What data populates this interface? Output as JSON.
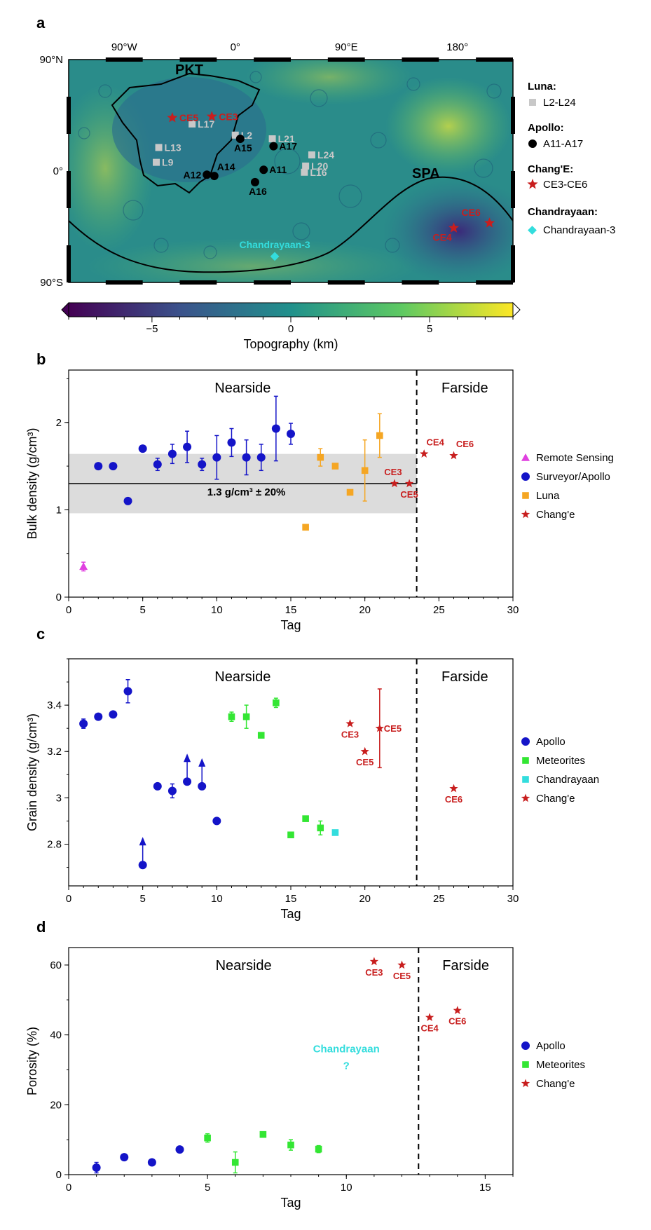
{
  "colors": {
    "apollo": "#1414c8",
    "luna": "#f5a623",
    "change": "#c81e1e",
    "remote": "#e040e0",
    "meteorite": "#33e633",
    "chandrayaan": "#33dddd",
    "gray_band": "#dcdcdc",
    "luna_map": "#c8c8c8",
    "apollo_map": "#000000"
  },
  "panel_a": {
    "label": "a",
    "lon_ticks": [
      "90°W",
      "0°",
      "90°E",
      "180°"
    ],
    "lat_ticks": [
      "90°N",
      "0°",
      "90°S"
    ],
    "regions": [
      "PKT",
      "SPA"
    ],
    "colorbar": {
      "title": "Topography (km)",
      "ticks": [
        -5,
        0,
        5
      ],
      "range": [
        -8,
        8
      ]
    },
    "legend": [
      {
        "title": "Luna:",
        "entry": "L2-L24",
        "icon": "gray-square-icon"
      },
      {
        "title": "Apollo:",
        "entry": "A11-A17",
        "icon": "black-circle-icon"
      },
      {
        "title": "Chang'E:",
        "entry": "CE3-CE6",
        "icon": "red-star-icon"
      },
      {
        "title": "Chandrayaan:",
        "entry": "Chandrayaan-3",
        "icon": "cyan-diamond-icon"
      }
    ],
    "sites": {
      "luna": [
        {
          "label": "L17",
          "lon": -35,
          "lat": 38
        },
        {
          "label": "L2",
          "lon": 0,
          "lat": 29
        },
        {
          "label": "L13",
          "lon": -62,
          "lat": 19
        },
        {
          "label": "L9",
          "lon": -64,
          "lat": 7
        },
        {
          "label": "L21",
          "lon": 30,
          "lat": 26
        },
        {
          "label": "L24",
          "lon": 62,
          "lat": 13
        },
        {
          "label": "L20",
          "lon": 57,
          "lat": 4
        },
        {
          "label": "L16",
          "lon": 56,
          "lat": -1
        }
      ],
      "apollo": [
        {
          "label": "A15",
          "lon": 4,
          "lat": 26
        },
        {
          "label": "A17",
          "lon": 31,
          "lat": 20
        },
        {
          "label": "A14",
          "lon": -17,
          "lat": -4
        },
        {
          "label": "A12",
          "lon": -23,
          "lat": -3
        },
        {
          "label": "A11",
          "lon": 23,
          "lat": 1
        },
        {
          "label": "A16",
          "lon": 16,
          "lat": -9
        }
      ],
      "change": [
        {
          "label": "CE5",
          "lon": -51,
          "lat": 43
        },
        {
          "label": "CE3",
          "lon": -19,
          "lat": 44
        },
        {
          "label": "CE6",
          "lon": -154,
          "lat": -42
        },
        {
          "label": "CE4",
          "lon": 177,
          "lat": -46
        }
      ],
      "chandrayaan": [
        {
          "label": "Chandrayaan-3",
          "lon": 32,
          "lat": -69
        }
      ]
    }
  },
  "chart_data": [
    {
      "panel": "b",
      "type": "scatter",
      "xlabel": "Tag",
      "ylabel": "Bulk density (g/cm³)",
      "xlim": [
        0,
        30
      ],
      "ylim": [
        0,
        2.6
      ],
      "xticks": [
        0,
        5,
        10,
        15,
        20,
        25,
        30
      ],
      "yticks": [
        0,
        1,
        2
      ],
      "divider_x": 23.5,
      "regions": [
        "Nearside",
        "Farside"
      ],
      "band": {
        "center": 1.3,
        "low": 0.96,
        "high": 1.64,
        "label": "1.3 g/cm³ ± 20%"
      },
      "legend_position": "right",
      "series": [
        {
          "name": "Remote Sensing",
          "marker": "triangle",
          "points": [
            {
              "x": 1,
              "y": 0.35,
              "err": 0.05
            }
          ]
        },
        {
          "name": "Surveyor/Apollo",
          "marker": "circle",
          "points": [
            {
              "x": 2,
              "y": 1.5
            },
            {
              "x": 3,
              "y": 1.5
            },
            {
              "x": 4,
              "y": 1.1
            },
            {
              "x": 5,
              "y": 1.7
            },
            {
              "x": 6,
              "y": 1.52,
              "err": 0.07
            },
            {
              "x": 7,
              "y": 1.64,
              "err": 0.11
            },
            {
              "x": 8,
              "y": 1.72,
              "err": 0.18
            },
            {
              "x": 9,
              "y": 1.52,
              "err": 0.07
            },
            {
              "x": 10,
              "y": 1.6,
              "err": 0.25
            },
            {
              "x": 11,
              "y": 1.77,
              "err": 0.16
            },
            {
              "x": 12,
              "y": 1.6,
              "err": 0.2
            },
            {
              "x": 13,
              "y": 1.6,
              "err": 0.15
            },
            {
              "x": 14,
              "y": 1.93,
              "err": 0.37
            },
            {
              "x": 15,
              "y": 1.87,
              "err": 0.12
            }
          ]
        },
        {
          "name": "Luna",
          "marker": "square",
          "points": [
            {
              "x": 16,
              "y": 0.8
            },
            {
              "x": 17,
              "y": 1.6,
              "err": 0.1
            },
            {
              "x": 18,
              "y": 1.5
            },
            {
              "x": 19,
              "y": 1.2
            },
            {
              "x": 20,
              "y": 1.45,
              "err": 0.35
            },
            {
              "x": 21,
              "y": 1.85,
              "err": 0.25
            }
          ]
        },
        {
          "name": "Chang'e",
          "marker": "star",
          "points": [
            {
              "x": 22,
              "y": 1.3,
              "label": "CE3"
            },
            {
              "x": 23,
              "y": 1.3,
              "label": "CE5"
            },
            {
              "x": 24,
              "y": 1.64,
              "label": "CE4"
            },
            {
              "x": 26,
              "y": 1.62,
              "label": "CE6"
            }
          ]
        }
      ]
    },
    {
      "panel": "c",
      "type": "scatter",
      "xlabel": "Tag",
      "ylabel": "Grain density  (g/cm³)",
      "xlim": [
        0,
        30
      ],
      "ylim": [
        2.62,
        3.6
      ],
      "xticks": [
        0,
        5,
        10,
        15,
        20,
        25,
        30
      ],
      "yticks": [
        2.8,
        3.0,
        3.2,
        3.4
      ],
      "divider_x": 23.5,
      "regions": [
        "Nearside",
        "Farside"
      ],
      "legend_position": "right",
      "series": [
        {
          "name": "Apollo",
          "marker": "circle",
          "points": [
            {
              "x": 1,
              "y": 3.32,
              "err": 0.02
            },
            {
              "x": 2,
              "y": 3.35
            },
            {
              "x": 3,
              "y": 3.36
            },
            {
              "x": 4,
              "y": 3.46,
              "err": 0.05
            },
            {
              "x": 5,
              "y": 2.71,
              "lower_bound": true
            },
            {
              "x": 6,
              "y": 3.05
            },
            {
              "x": 7,
              "y": 3.03,
              "err": 0.03
            },
            {
              "x": 8,
              "y": 3.07,
              "lower_bound": true
            },
            {
              "x": 9,
              "y": 3.05,
              "lower_bound": true
            },
            {
              "x": 10,
              "y": 2.9
            }
          ]
        },
        {
          "name": "Meteorites",
          "marker": "square",
          "points": [
            {
              "x": 11,
              "y": 3.35,
              "err": 0.02
            },
            {
              "x": 12,
              "y": 3.35,
              "err": 0.05
            },
            {
              "x": 13,
              "y": 3.27
            },
            {
              "x": 14,
              "y": 3.41,
              "err": 0.02
            },
            {
              "x": 15,
              "y": 2.84
            },
            {
              "x": 16,
              "y": 2.91
            },
            {
              "x": 17,
              "y": 2.87,
              "err": 0.03
            }
          ]
        },
        {
          "name": "Chandrayaan",
          "marker": "square",
          "points": [
            {
              "x": 18,
              "y": 2.85
            }
          ]
        },
        {
          "name": "Chang'e",
          "marker": "star",
          "points": [
            {
              "x": 19,
              "y": 3.32,
              "label": "CE3"
            },
            {
              "x": 20,
              "y": 3.2,
              "label": "CE5"
            },
            {
              "x": 21,
              "y": 3.3,
              "err": 0.17,
              "label": "CE5"
            },
            {
              "x": 26,
              "y": 3.04,
              "label": "CE6"
            }
          ]
        }
      ]
    },
    {
      "panel": "d",
      "type": "scatter",
      "xlabel": "Tag",
      "ylabel": "Porosity (%)",
      "xlim": [
        0,
        16
      ],
      "ylim": [
        0,
        65
      ],
      "xticks": [
        0,
        5,
        10,
        15
      ],
      "yticks": [
        0,
        20,
        40,
        60
      ],
      "divider_x": 12.6,
      "regions": [
        "Nearside",
        "Farside"
      ],
      "legend_position": "right",
      "annotation": {
        "label": "Chandrayaan",
        "mark": "?",
        "x": 10,
        "y": 35
      },
      "series": [
        {
          "name": "Apollo",
          "marker": "circle",
          "points": [
            {
              "x": 1,
              "y": 2,
              "err": 1.5
            },
            {
              "x": 2,
              "y": 5
            },
            {
              "x": 3,
              "y": 3.5
            },
            {
              "x": 4,
              "y": 7.2
            }
          ]
        },
        {
          "name": "Meteorites",
          "marker": "square",
          "points": [
            {
              "x": 5,
              "y": 10.5,
              "err": 1.2
            },
            {
              "x": 6,
              "y": 3.5,
              "err": 3
            },
            {
              "x": 7,
              "y": 11.5
            },
            {
              "x": 8,
              "y": 8.5,
              "err": 1.5
            },
            {
              "x": 9,
              "y": 7.3,
              "err": 1
            }
          ]
        },
        {
          "name": "Chang'e",
          "marker": "star",
          "points": [
            {
              "x": 11,
              "y": 61,
              "label": "CE3"
            },
            {
              "x": 12,
              "y": 60,
              "label": "CE5"
            },
            {
              "x": 13,
              "y": 45,
              "label": "CE4"
            },
            {
              "x": 14,
              "y": 47,
              "label": "CE6"
            }
          ]
        }
      ]
    }
  ]
}
